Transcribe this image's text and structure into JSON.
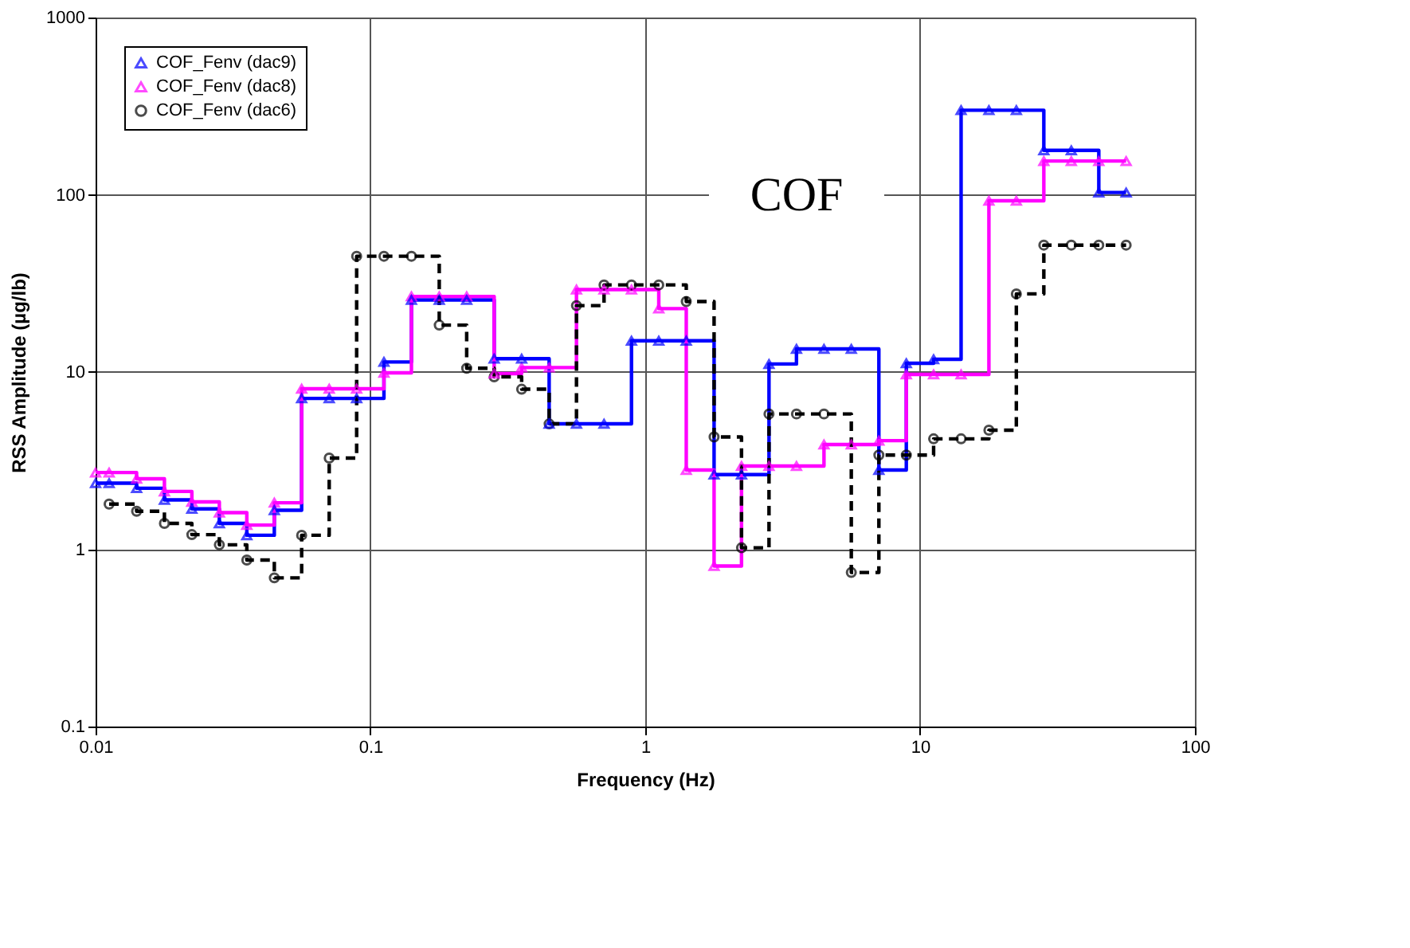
{
  "chart_data": {
    "type": "step",
    "xlabel": "Frequency (Hz)",
    "ylabel": "RSS Amplitude (µg/lb)",
    "log": "xy",
    "grid": true,
    "legend": "top left",
    "annotations": [
      "COF"
    ],
    "xlim": [
      0.01,
      100
    ],
    "xticks": [
      0.01,
      0.1,
      1,
      10,
      100
    ],
    "ylim": [
      0.1,
      1000
    ],
    "yticks": [
      0.1,
      1,
      10,
      100,
      1000
    ],
    "x": [
      0.01,
      0.0112,
      0.0141,
      0.0178,
      0.0224,
      0.0282,
      0.0355,
      0.0447,
      0.0562,
      0.0708,
      0.0891,
      0.112,
      0.141,
      0.178,
      0.224,
      0.282,
      0.355,
      0.447,
      0.562,
      0.708,
      0.891,
      1.12,
      1.41,
      1.78,
      2.24,
      2.82,
      3.55,
      4.47,
      5.62,
      7.08,
      8.91,
      11.2,
      14.1,
      17.8,
      22.4,
      28.2,
      35.5,
      44.7,
      56.2
    ],
    "series": [
      {
        "name": "COF_Fenv (dac9)",
        "color": "#0000ff",
        "marker": "triangle",
        "line_style": "solid",
        "values": [
          2.36,
          2.36,
          2.21,
          1.9,
          1.69,
          1.4,
          1.2,
          1.66,
          7.1,
          7.1,
          7.1,
          11.4,
          25.5,
          25.5,
          25.5,
          11.9,
          11.9,
          5.1,
          5.1,
          5.1,
          15,
          15,
          15,
          2.64,
          2.64,
          11.1,
          13.5,
          13.5,
          13.5,
          2.8,
          11.2,
          11.8,
          300,
          300,
          300,
          178,
          178,
          103,
          103
        ]
      },
      {
        "name": "COF_Fenv (dac8)",
        "color": "#ff00ff",
        "marker": "triangle",
        "line_style": "solid",
        "values": [
          2.71,
          2.71,
          2.5,
          2.12,
          1.85,
          1.61,
          1.37,
          1.83,
          8.05,
          8.05,
          8.05,
          9.9,
          26.7,
          26.7,
          26.7,
          9.8,
          10.6,
          10.6,
          29.2,
          29.2,
          29.2,
          22.8,
          2.8,
          0.805,
          2.95,
          2.95,
          2.95,
          3.9,
          3.9,
          4.1,
          9.7,
          9.7,
          9.7,
          92.5,
          92.5,
          155,
          155,
          155,
          155
        ]
      },
      {
        "name": "COF_Fenv (dac6)",
        "color": "#000000",
        "marker": "circle",
        "line_style": "dashed",
        "x": [
          0.0112,
          0.0141,
          0.0178,
          0.0224,
          0.0282,
          0.0355,
          0.0447,
          0.0562,
          0.0708,
          0.0891,
          0.112,
          0.141,
          0.178,
          0.224,
          0.282,
          0.355,
          0.447,
          0.562,
          0.708,
          0.891,
          1.12,
          1.41,
          1.78,
          2.24,
          2.82,
          3.55,
          4.47,
          5.62,
          7.08,
          8.91,
          11.2,
          14.1,
          17.8,
          22.4,
          28.2,
          35.5,
          44.7,
          56.2
        ],
        "values": [
          1.8,
          1.64,
          1.4,
          1.21,
          1.06,
          0.87,
          0.69,
          1.2,
          3.27,
          45,
          45,
          45,
          18.4,
          10.5,
          9.4,
          8.0,
          5.1,
          23.7,
          31,
          31,
          31,
          25,
          4.3,
          1.02,
          5.8,
          5.8,
          5.8,
          0.74,
          3.4,
          3.4,
          4.2,
          4.2,
          4.7,
          27.6,
          52,
          52,
          52,
          52
        ]
      }
    ]
  }
}
